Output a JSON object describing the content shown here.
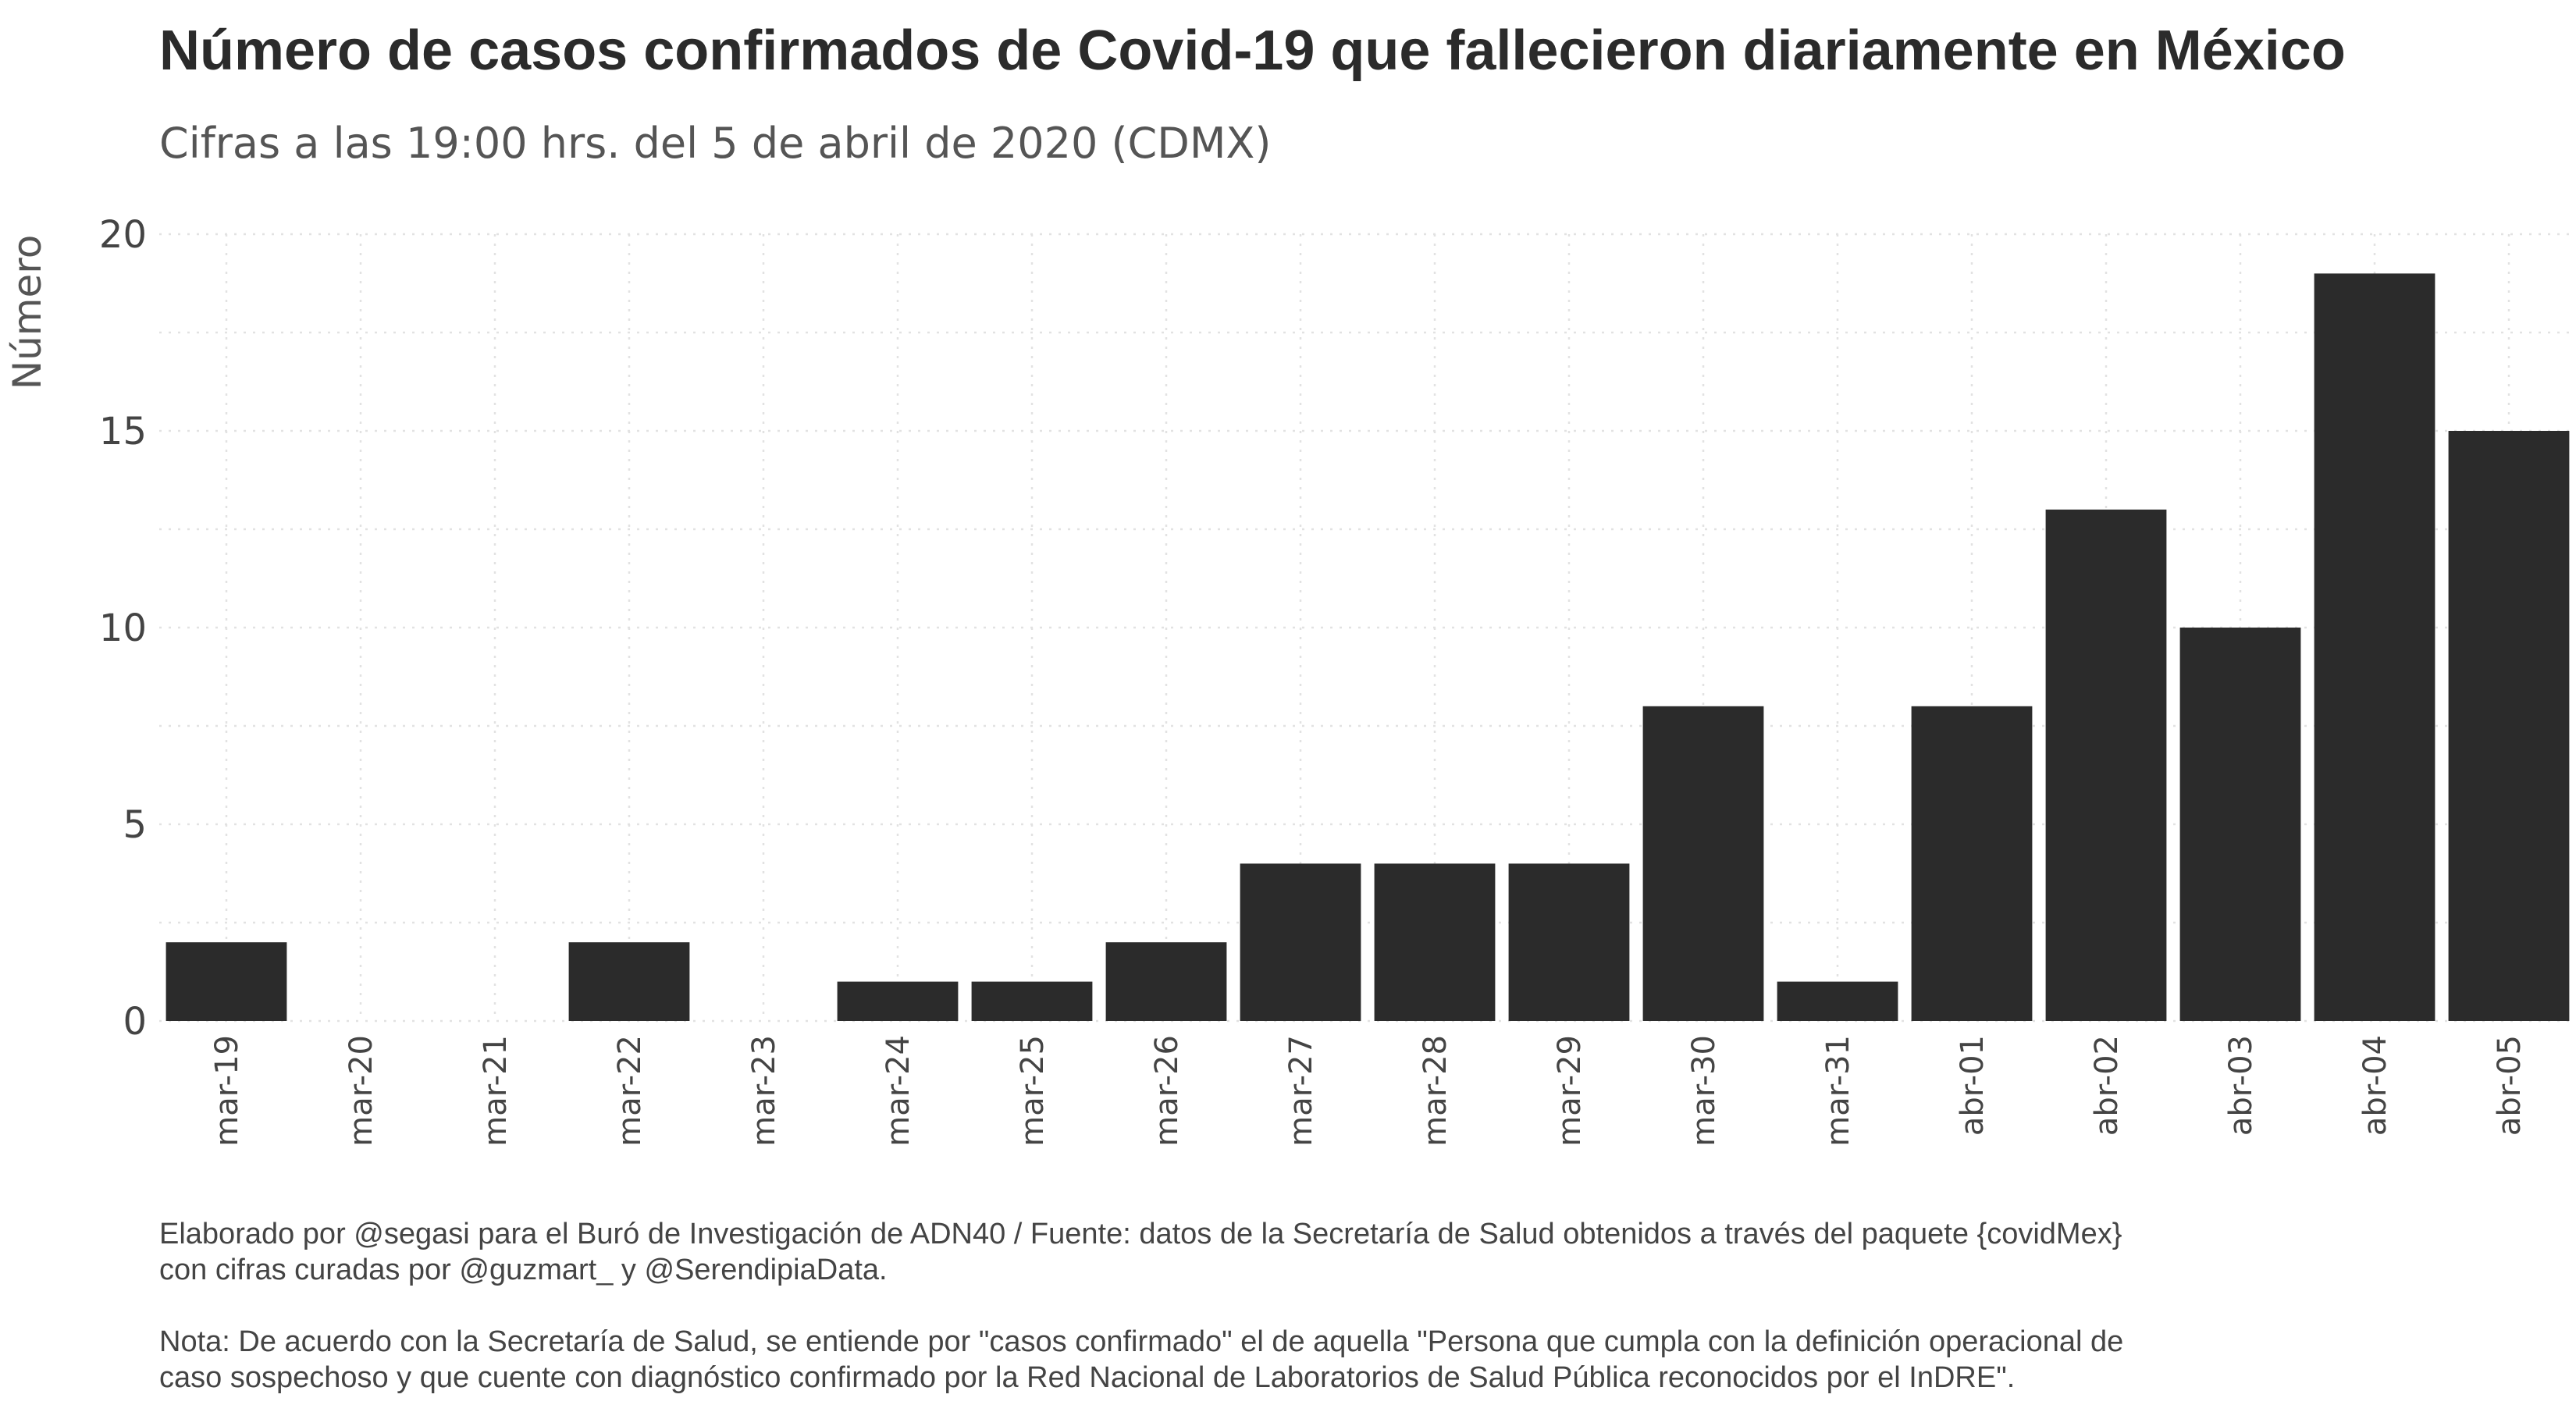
{
  "chart_data": {
    "type": "bar",
    "title": "Número de casos confirmados de Covid-19 que fallecieron diariamente en México",
    "subtitle": "Cifras a las 19:00 hrs. del 5 de abril de 2020 (CDMX)",
    "xlabel": "",
    "ylabel": "Número",
    "ylim": [
      0,
      20
    ],
    "yticks": [
      0,
      5,
      10,
      15,
      20
    ],
    "grid": true,
    "bar_color": "#2b2b2b",
    "categories": [
      "mar-19",
      "mar-20",
      "mar-21",
      "mar-22",
      "mar-23",
      "mar-24",
      "mar-25",
      "mar-26",
      "mar-27",
      "mar-28",
      "mar-29",
      "mar-30",
      "mar-31",
      "abr-01",
      "abr-02",
      "abr-03",
      "abr-04",
      "abr-05"
    ],
    "values": [
      2,
      0,
      0,
      2,
      0,
      1,
      1,
      2,
      4,
      4,
      4,
      8,
      1,
      8,
      13,
      10,
      19,
      15
    ]
  },
  "caption": {
    "source_lines": [
      "Elaborado por @segasi  para el Buró de Investigación de ADN40 / Fuente: datos de la Secretaría de Salud obtenidos a través del paquete {covidMex}",
      "con cifras curadas por @guzmart_ y  @SerendipiaData."
    ],
    "note_lines": [
      "Nota: De acuerdo con la Secretaría de Salud, se entiende por \"casos confirmado\" el de aquella \"Persona que cumpla con la definición operacional de",
      "caso sospechoso y que cuente con diagnóstico confirmado por la Red Nacional de Laboratorios de Salud Pública reconocidos por el InDRE\"."
    ]
  }
}
